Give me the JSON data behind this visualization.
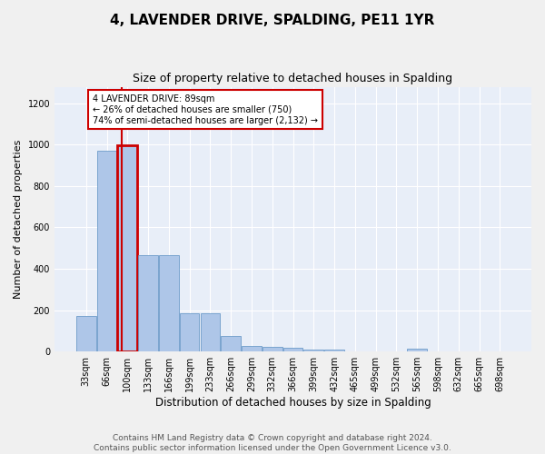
{
  "title": "4, LAVENDER DRIVE, SPALDING, PE11 1YR",
  "subtitle": "Size of property relative to detached houses in Spalding",
  "xlabel": "Distribution of detached houses by size in Spalding",
  "ylabel": "Number of detached properties",
  "bar_labels": [
    "33sqm",
    "66sqm",
    "100sqm",
    "133sqm",
    "166sqm",
    "199sqm",
    "233sqm",
    "266sqm",
    "299sqm",
    "332sqm",
    "366sqm",
    "399sqm",
    "432sqm",
    "465sqm",
    "499sqm",
    "532sqm",
    "565sqm",
    "598sqm",
    "632sqm",
    "665sqm",
    "698sqm"
  ],
  "bar_values": [
    170,
    970,
    995,
    465,
    465,
    185,
    185,
    75,
    28,
    22,
    18,
    10,
    10,
    0,
    0,
    0,
    15,
    0,
    0,
    0,
    0
  ],
  "bar_color": "#aec6e8",
  "bar_edge_color": "#5a8fc2",
  "highlight_bar_index": 2,
  "highlight_color": "#cc0000",
  "annotation_text": "4 LAVENDER DRIVE: 89sqm\n← 26% of detached houses are smaller (750)\n74% of semi-detached houses are larger (2,132) →",
  "annotation_box_color": "#ffffff",
  "annotation_border_color": "#cc0000",
  "ylim": [
    0,
    1280
  ],
  "yticks": [
    0,
    200,
    400,
    600,
    800,
    1000,
    1200
  ],
  "footer_line1": "Contains HM Land Registry data © Crown copyright and database right 2024.",
  "footer_line2": "Contains public sector information licensed under the Open Government Licence v3.0.",
  "fig_bg_color": "#f0f0f0",
  "plot_bg_color": "#e8eef8",
  "grid_color": "#ffffff",
  "title_fontsize": 11,
  "subtitle_fontsize": 9,
  "xlabel_fontsize": 8.5,
  "ylabel_fontsize": 8,
  "tick_fontsize": 7,
  "annotation_fontsize": 7,
  "footer_fontsize": 6.5
}
